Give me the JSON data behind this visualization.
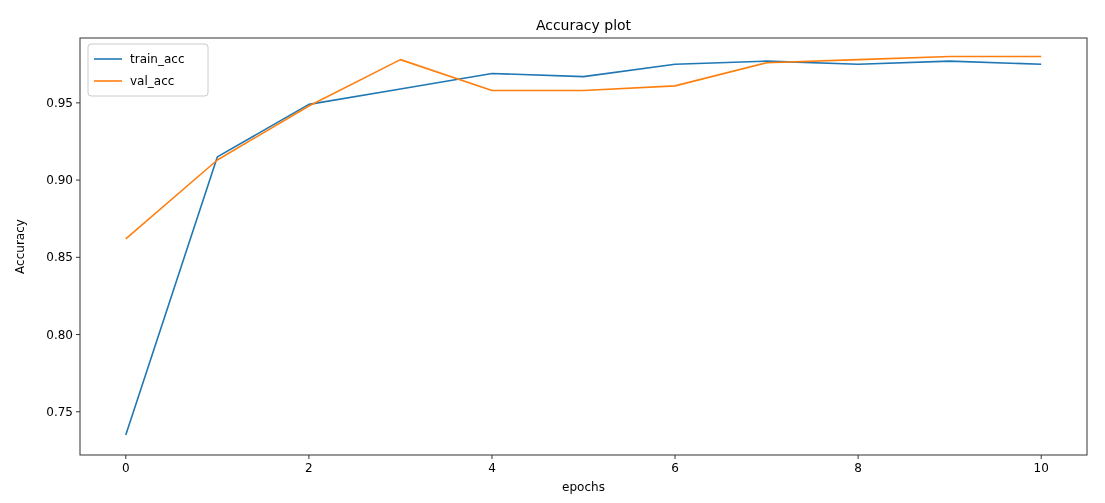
{
  "chart_data": {
    "type": "line",
    "title": "Accuracy plot",
    "xlabel": "epochs",
    "ylabel": "Accuracy",
    "x": [
      0,
      1,
      2,
      3,
      4,
      5,
      6,
      7,
      8,
      9,
      10
    ],
    "series": [
      {
        "name": "train_acc",
        "color": "#1f77b4",
        "values": [
          0.735,
          0.915,
          0.949,
          0.959,
          0.969,
          0.967,
          0.975,
          0.977,
          0.975,
          0.977,
          0.975
        ]
      },
      {
        "name": "val_acc",
        "color": "#ff7f0e",
        "values": [
          0.862,
          0.913,
          0.948,
          0.978,
          0.958,
          0.958,
          0.961,
          0.976,
          0.978,
          0.98,
          0.98
        ]
      }
    ],
    "xlim": [
      -0.5,
      10.5
    ],
    "ylim": [
      0.722,
      0.992
    ],
    "xticks": [
      0,
      2,
      4,
      6,
      8,
      10
    ],
    "yticks": [
      {
        "value": 0.75,
        "label": "0.75"
      },
      {
        "value": 0.8,
        "label": "0.80"
      },
      {
        "value": 0.85,
        "label": "0.85"
      },
      {
        "value": 0.9,
        "label": "0.90"
      },
      {
        "value": 0.95,
        "label": "0.95"
      }
    ],
    "legend": "top left",
    "grid": false
  }
}
